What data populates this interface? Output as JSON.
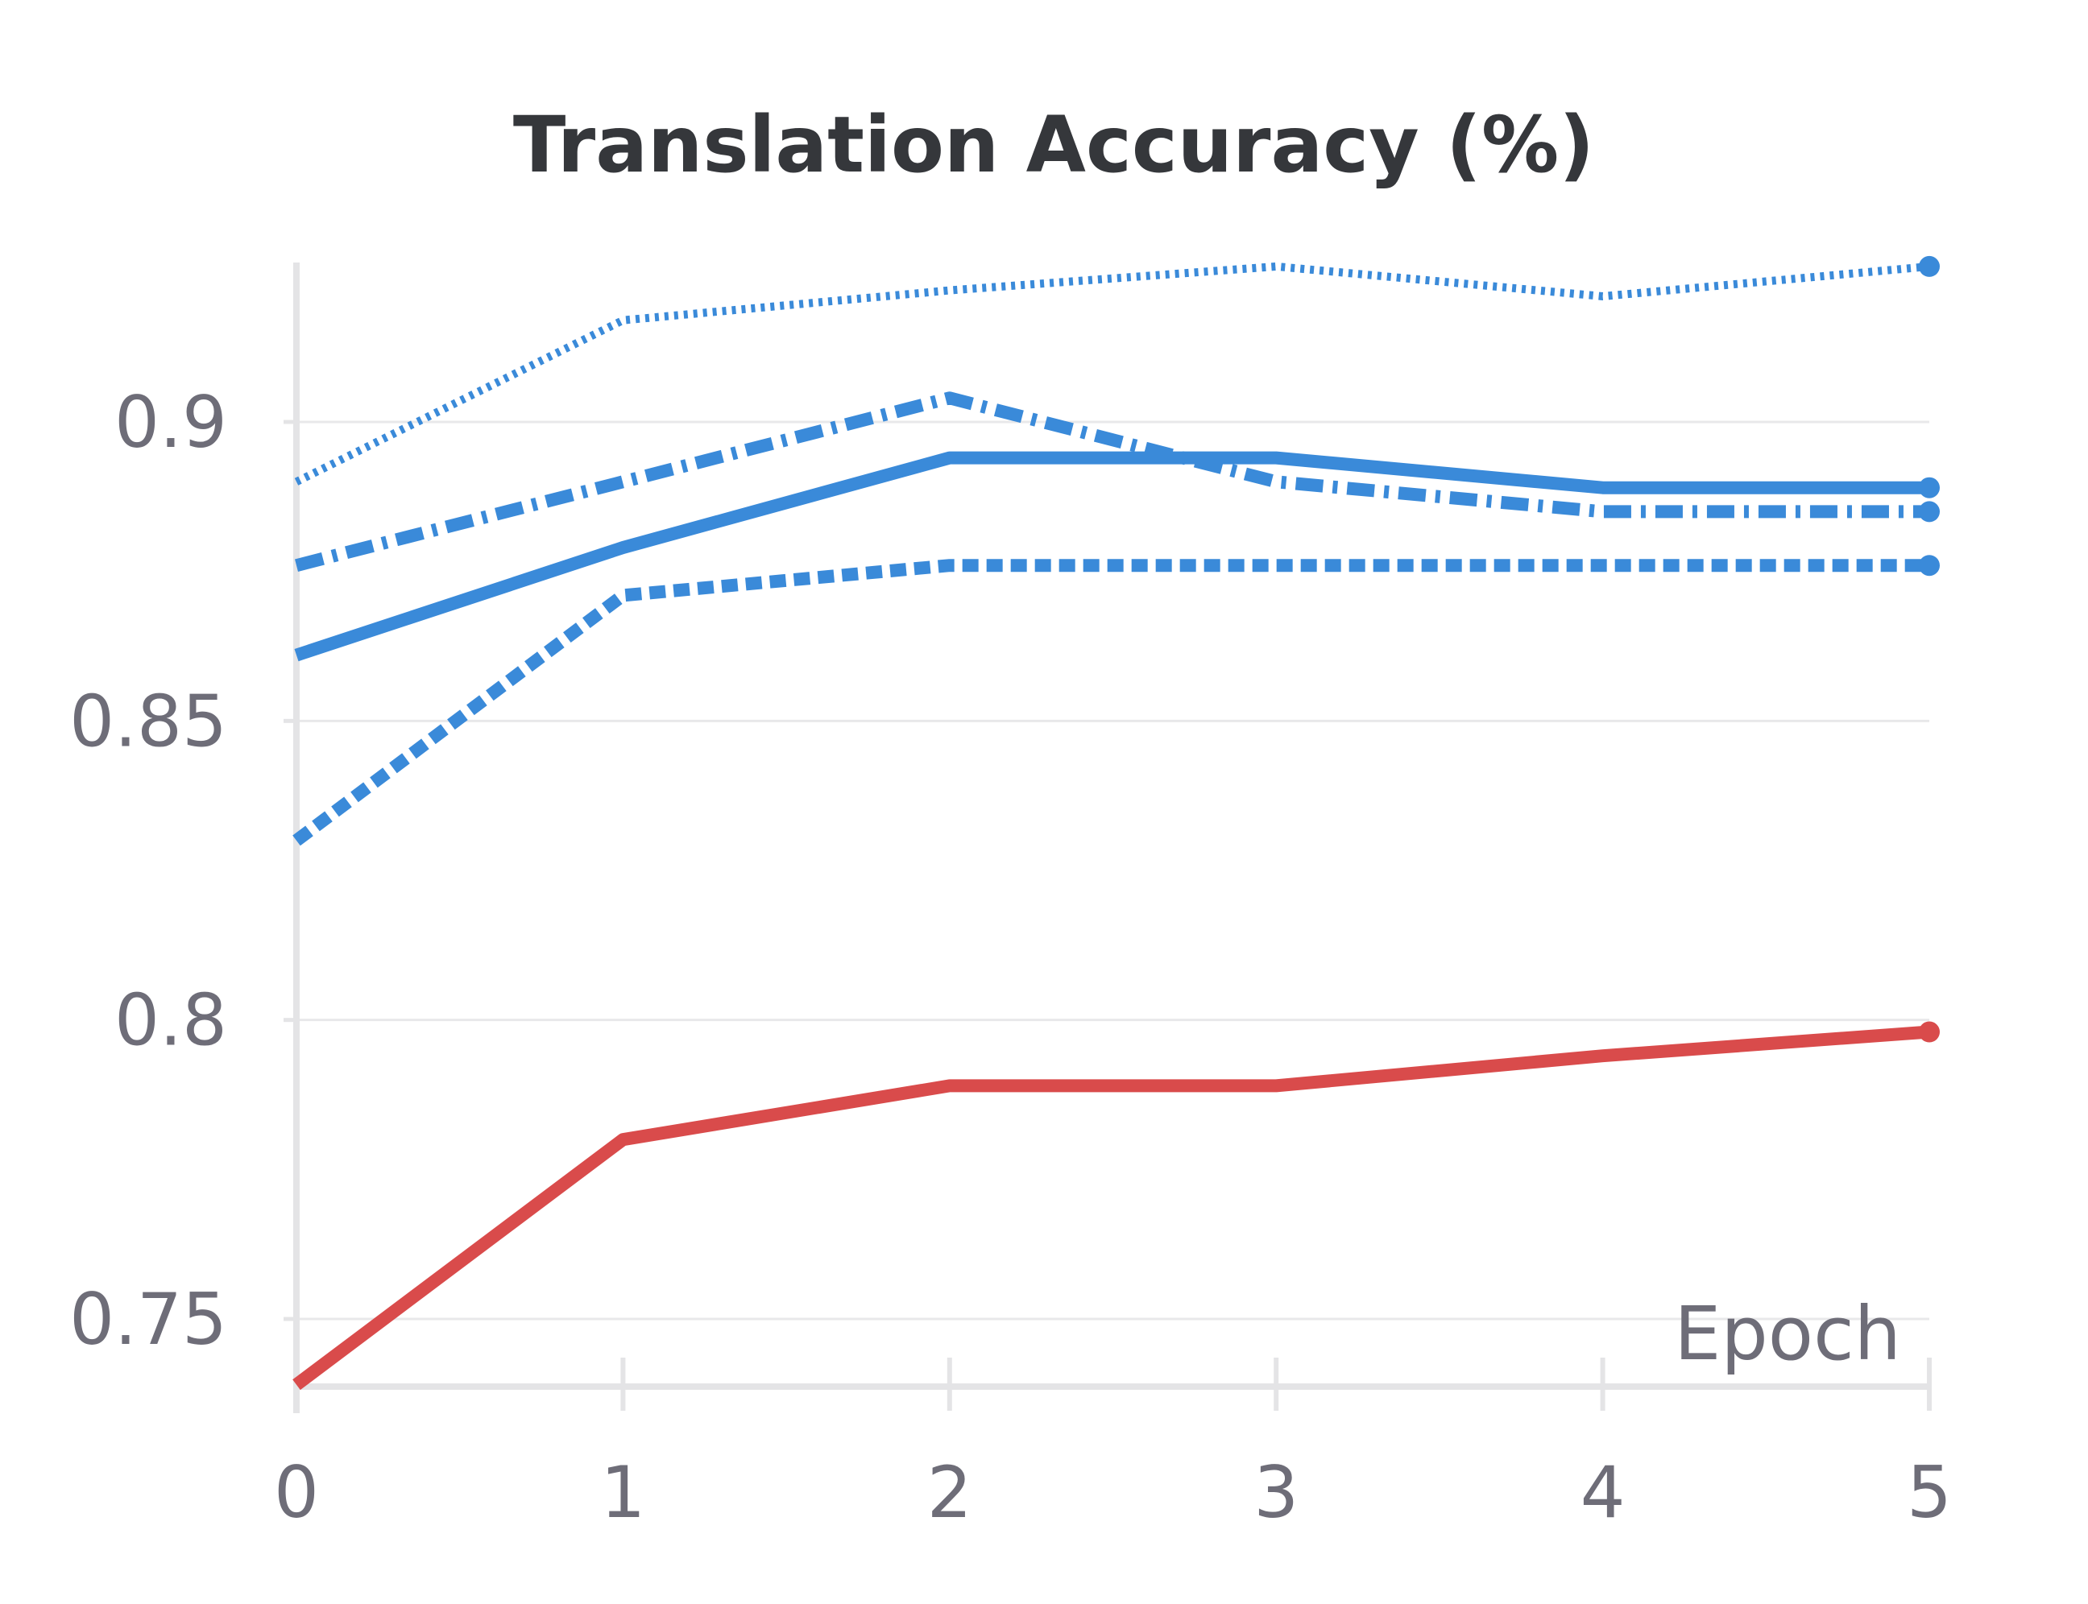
{
  "chart_data": {
    "type": "line",
    "title": "Translation Accuracy (%)",
    "xlabel": "Epoch",
    "ylabel": "",
    "x": [
      0,
      1,
      2,
      3,
      4,
      5
    ],
    "xlim": [
      0,
      5
    ],
    "ylim": [
      0.739,
      0.928
    ],
    "x_ticks": [
      "0",
      "1",
      "2",
      "3",
      "4",
      "5"
    ],
    "y_ticks": [
      {
        "value": 0.75,
        "label": "0.75"
      },
      {
        "value": 0.8,
        "label": "0.8"
      },
      {
        "value": 0.85,
        "label": "0.85"
      },
      {
        "value": 0.9,
        "label": "0.9"
      }
    ],
    "grid": "horizontal",
    "legend": "none",
    "series": [
      {
        "style": "dotted",
        "color": "#3a8ad9",
        "values": [
          0.89,
          0.917,
          0.922,
          0.926,
          0.921,
          0.926
        ]
      },
      {
        "style": "dashdot",
        "color": "#3a8ad9",
        "values": [
          0.876,
          0.89,
          0.904,
          0.89,
          0.885,
          0.885
        ]
      },
      {
        "style": "solid",
        "color": "#3a8ad9",
        "values": [
          0.861,
          0.879,
          0.894,
          0.894,
          0.889,
          0.889
        ]
      },
      {
        "style": "dashed",
        "color": "#3a8ad9",
        "values": [
          0.83,
          0.871,
          0.876,
          0.876,
          0.876,
          0.876
        ]
      },
      {
        "style": "solid",
        "color": "#d94b4b",
        "values": [
          0.739,
          0.78,
          0.789,
          0.789,
          0.794,
          0.798
        ]
      }
    ]
  }
}
